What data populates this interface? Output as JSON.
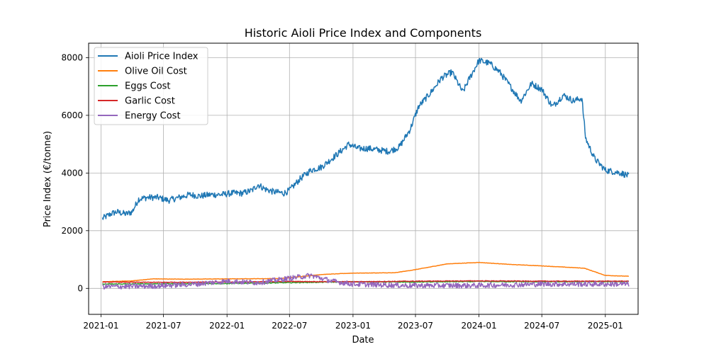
{
  "chart_data": {
    "type": "line",
    "title": "Historic Aioli Price Index and Components",
    "xlabel": "Date",
    "ylabel": "Price Index (€/tonne)",
    "x_type": "date",
    "xlim": [
      "2020-11-26",
      "2025-04-06"
    ],
    "ylim": [
      -900,
      8500
    ],
    "x_ticks": [
      "2021-01-01",
      "2021-07-01",
      "2022-01-01",
      "2022-07-01",
      "2023-01-01",
      "2023-07-01",
      "2024-01-01",
      "2024-07-01",
      "2025-01-01"
    ],
    "x_tick_labels": [
      "2021-01",
      "2021-07",
      "2022-01",
      "2022-07",
      "2023-01",
      "2023-07",
      "2024-01",
      "2024-07",
      "2025-01"
    ],
    "y_ticks": [
      0,
      2000,
      4000,
      6000,
      8000
    ],
    "y_tick_labels": [
      "0",
      "2000",
      "4000",
      "6000",
      "8000"
    ],
    "grid": true,
    "legend_position": "top-left",
    "series": [
      {
        "name": "Aioli Price Index",
        "color": "#1f77b4",
        "noise": 110,
        "points": [
          [
            "2021-01-05",
            2420
          ],
          [
            "2021-02-01",
            2600
          ],
          [
            "2021-02-15",
            2650
          ],
          [
            "2021-03-15",
            2580
          ],
          [
            "2021-04-01",
            2650
          ],
          [
            "2021-04-20",
            3100
          ],
          [
            "2021-05-15",
            3150
          ],
          [
            "2021-06-15",
            3150
          ],
          [
            "2021-07-15",
            3050
          ],
          [
            "2021-08-15",
            3150
          ],
          [
            "2021-09-15",
            3250
          ],
          [
            "2021-10-15",
            3200
          ],
          [
            "2021-11-15",
            3250
          ],
          [
            "2021-12-15",
            3250
          ],
          [
            "2022-01-15",
            3300
          ],
          [
            "2022-02-15",
            3300
          ],
          [
            "2022-03-15",
            3400
          ],
          [
            "2022-04-01",
            3600
          ],
          [
            "2022-04-20",
            3450
          ],
          [
            "2022-05-15",
            3350
          ],
          [
            "2022-06-15",
            3300
          ],
          [
            "2022-07-01",
            3400
          ],
          [
            "2022-08-01",
            3800
          ],
          [
            "2022-09-01",
            4100
          ],
          [
            "2022-10-01",
            4200
          ],
          [
            "2022-11-01",
            4500
          ],
          [
            "2022-12-01",
            4800
          ],
          [
            "2022-12-20",
            5000
          ],
          [
            "2023-01-15",
            4850
          ],
          [
            "2023-02-15",
            4850
          ],
          [
            "2023-03-15",
            4800
          ],
          [
            "2023-04-15",
            4750
          ],
          [
            "2023-05-15",
            4900
          ],
          [
            "2023-06-15",
            5500
          ],
          [
            "2023-07-10",
            6300
          ],
          [
            "2023-08-15",
            6800
          ],
          [
            "2023-09-15",
            7300
          ],
          [
            "2023-10-15",
            7500
          ],
          [
            "2023-11-15",
            6800
          ],
          [
            "2023-12-01",
            7200
          ],
          [
            "2024-01-01",
            7900
          ],
          [
            "2024-02-01",
            7800
          ],
          [
            "2024-03-01",
            7500
          ],
          [
            "2024-04-01",
            7000
          ],
          [
            "2024-05-01",
            6500
          ],
          [
            "2024-06-01",
            7100
          ],
          [
            "2024-07-01",
            6900
          ],
          [
            "2024-08-01",
            6300
          ],
          [
            "2024-09-01",
            6700
          ],
          [
            "2024-10-01",
            6500
          ],
          [
            "2024-10-25",
            6600
          ],
          [
            "2024-11-05",
            5200
          ],
          [
            "2024-12-01",
            4500
          ],
          [
            "2025-01-01",
            4100
          ],
          [
            "2025-02-15",
            4000
          ],
          [
            "2025-03-10",
            3900
          ]
        ]
      },
      {
        "name": "Olive Oil Cost",
        "color": "#ff7f0e",
        "noise": 6,
        "points": [
          [
            "2021-01-05",
            230
          ],
          [
            "2021-04-01",
            260
          ],
          [
            "2021-06-01",
            330
          ],
          [
            "2021-09-01",
            320
          ],
          [
            "2022-01-01",
            330
          ],
          [
            "2022-06-01",
            340
          ],
          [
            "2022-10-01",
            480
          ],
          [
            "2023-01-01",
            530
          ],
          [
            "2023-05-01",
            540
          ],
          [
            "2023-07-01",
            650
          ],
          [
            "2023-10-01",
            850
          ],
          [
            "2024-01-01",
            900
          ],
          [
            "2024-04-01",
            830
          ],
          [
            "2024-07-01",
            780
          ],
          [
            "2024-11-01",
            700
          ],
          [
            "2025-01-01",
            450
          ],
          [
            "2025-03-10",
            420
          ]
        ]
      },
      {
        "name": "Eggs Cost",
        "color": "#2ca02c",
        "noise": 15,
        "points": [
          [
            "2021-01-05",
            150
          ],
          [
            "2021-06-01",
            160
          ],
          [
            "2022-01-01",
            170
          ],
          [
            "2022-07-01",
            200
          ],
          [
            "2023-01-01",
            230
          ],
          [
            "2023-06-01",
            220
          ],
          [
            "2024-01-01",
            240
          ],
          [
            "2024-07-01",
            230
          ],
          [
            "2025-03-10",
            240
          ]
        ]
      },
      {
        "name": "Garlic Cost",
        "color": "#d62728",
        "noise": 12,
        "points": [
          [
            "2021-01-05",
            220
          ],
          [
            "2021-06-01",
            210
          ],
          [
            "2022-01-01",
            220
          ],
          [
            "2022-07-01",
            240
          ],
          [
            "2023-01-01",
            230
          ],
          [
            "2023-07-01",
            250
          ],
          [
            "2024-01-01",
            260
          ],
          [
            "2024-07-01",
            250
          ],
          [
            "2025-03-10",
            250
          ]
        ]
      },
      {
        "name": "Energy Cost",
        "color": "#9467bd",
        "noise": 90,
        "points": [
          [
            "2021-01-05",
            60
          ],
          [
            "2021-06-01",
            80
          ],
          [
            "2021-10-01",
            150
          ],
          [
            "2022-01-01",
            250
          ],
          [
            "2022-04-01",
            200
          ],
          [
            "2022-07-01",
            350
          ],
          [
            "2022-09-01",
            450
          ],
          [
            "2022-11-01",
            250
          ],
          [
            "2023-01-01",
            150
          ],
          [
            "2023-06-01",
            100
          ],
          [
            "2024-01-01",
            100
          ],
          [
            "2024-07-01",
            150
          ],
          [
            "2025-03-10",
            150
          ]
        ]
      }
    ]
  }
}
